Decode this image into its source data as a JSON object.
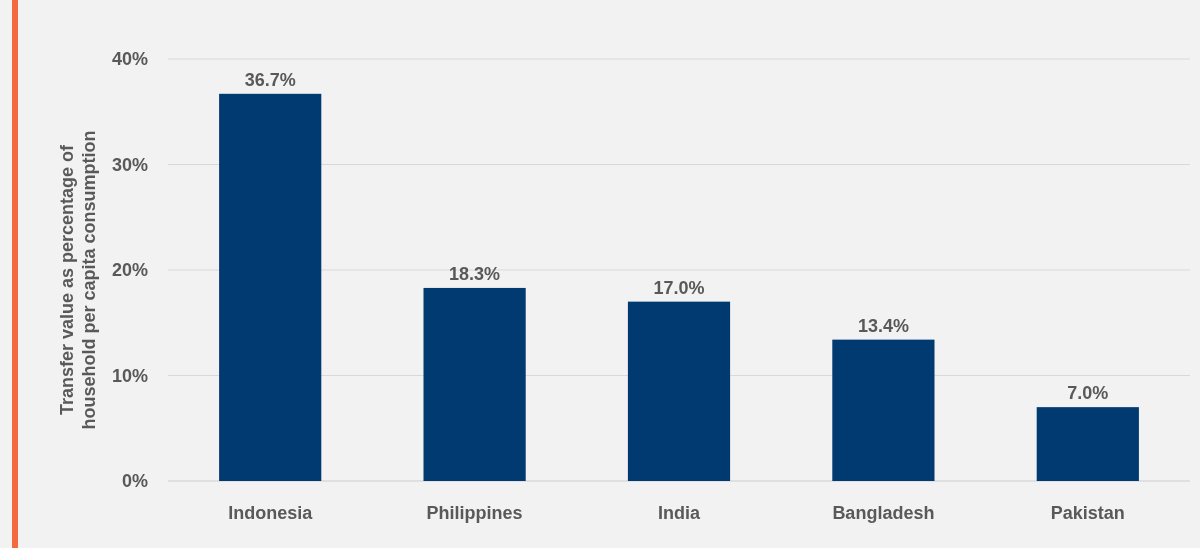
{
  "chart_data": {
    "type": "bar",
    "ylabel": "Transfer value as percentage of household per capita consumption",
    "categories": [
      "Indonesia",
      "Philippines",
      "India",
      "Bangladesh",
      "Pakistan"
    ],
    "values": [
      36.7,
      18.3,
      17.0,
      13.4,
      7.0
    ],
    "value_labels": [
      "36.7%",
      "18.3%",
      "17.0%",
      "13.4%",
      "7.0%"
    ],
    "color": "#003a70",
    "ylim": [
      0,
      40
    ],
    "yticks": [
      {
        "value": 0,
        "label": "0%"
      },
      {
        "value": 10,
        "label": "10%"
      },
      {
        "value": 20,
        "label": "20%"
      },
      {
        "value": 30,
        "label": "30%"
      },
      {
        "value": 40,
        "label": "40%"
      }
    ],
    "grid": "y"
  }
}
